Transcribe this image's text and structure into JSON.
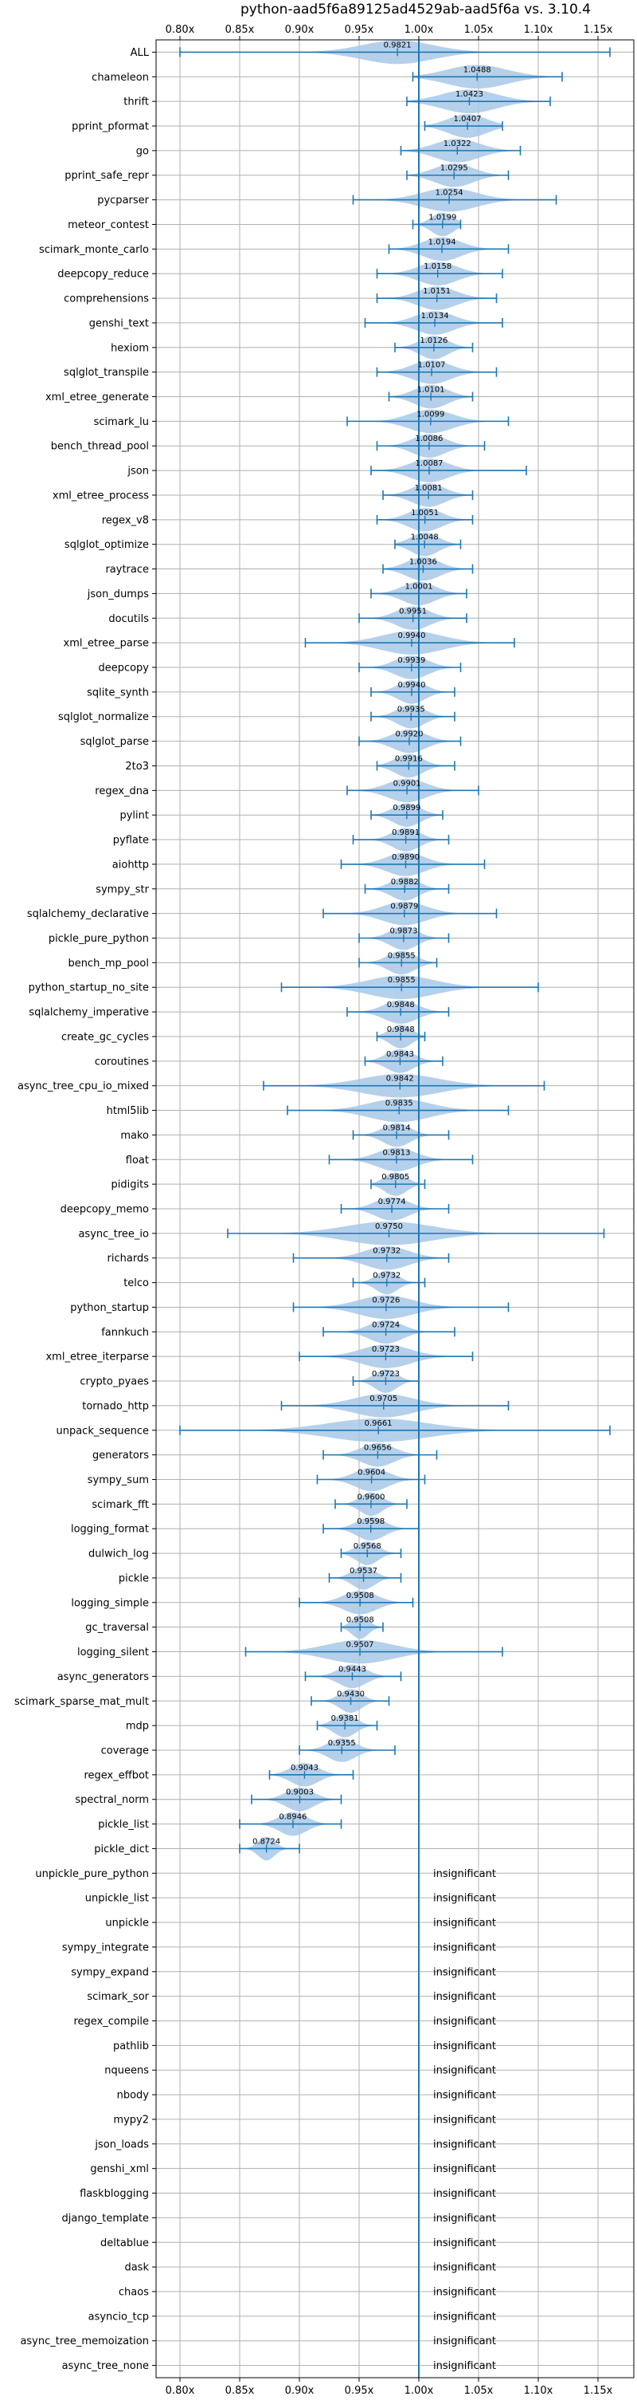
{
  "chart_data": {
    "type": "violin",
    "title": "python-aad5f6a89125ad4529ab-aad5f6a vs. 3.10.4",
    "xlabel": "",
    "ylabel": "",
    "xlim": [
      0.78,
      1.18
    ],
    "reference_line": 1.0,
    "xticks": [
      0.8,
      0.85,
      0.9,
      0.95,
      1.0,
      1.05,
      1.1,
      1.15
    ],
    "xtick_labels": [
      "0.80x",
      "0.85x",
      "0.90x",
      "0.95x",
      "1.00x",
      "1.05x",
      "1.10x",
      "1.15x"
    ],
    "grid": true,
    "colors": {
      "violin": "#a8c8e6",
      "whisker": "#1f77b4",
      "reference": "#1f77b4",
      "grid": "#b0b0b0"
    },
    "insignificant_label": "insignificant",
    "benchmarks": [
      {
        "name": "ALL",
        "value": 0.9821,
        "label": "0.9821",
        "min": 0.8,
        "max": 1.16,
        "spread": 0.065
      },
      {
        "name": "chameleon",
        "value": 1.0488,
        "label": "1.0488",
        "min": 0.995,
        "max": 1.12,
        "spread": 0.055
      },
      {
        "name": "thrift",
        "value": 1.0423,
        "label": "1.0423",
        "min": 0.99,
        "max": 1.11,
        "spread": 0.05
      },
      {
        "name": "pprint_pformat",
        "value": 1.0407,
        "label": "1.0407",
        "min": 1.005,
        "max": 1.07,
        "spread": 0.035
      },
      {
        "name": "go",
        "value": 1.0322,
        "label": "1.0322",
        "min": 0.985,
        "max": 1.085,
        "spread": 0.04
      },
      {
        "name": "pprint_safe_repr",
        "value": 1.0295,
        "label": "1.0295",
        "min": 0.99,
        "max": 1.075,
        "spread": 0.035
      },
      {
        "name": "pycparser",
        "value": 1.0254,
        "label": "1.0254",
        "min": 0.945,
        "max": 1.115,
        "spread": 0.05
      },
      {
        "name": "meteor_contest",
        "value": 1.0199,
        "label": "1.0199",
        "min": 0.995,
        "max": 1.035,
        "spread": 0.02
      },
      {
        "name": "scimark_monte_carlo",
        "value": 1.0194,
        "label": "1.0194",
        "min": 0.975,
        "max": 1.075,
        "spread": 0.035
      },
      {
        "name": "deepcopy_reduce",
        "value": 1.0158,
        "label": "1.0158",
        "min": 0.965,
        "max": 1.07,
        "spread": 0.035
      },
      {
        "name": "comprehensions",
        "value": 1.0151,
        "label": "1.0151",
        "min": 0.965,
        "max": 1.065,
        "spread": 0.035
      },
      {
        "name": "genshi_text",
        "value": 1.0134,
        "label": "1.0134",
        "min": 0.955,
        "max": 1.07,
        "spread": 0.035
      },
      {
        "name": "hexiom",
        "value": 1.0126,
        "label": "1.0126",
        "min": 0.98,
        "max": 1.045,
        "spread": 0.025
      },
      {
        "name": "sqlglot_transpile",
        "value": 1.0107,
        "label": "1.0107",
        "min": 0.965,
        "max": 1.065,
        "spread": 0.035
      },
      {
        "name": "xml_etree_generate",
        "value": 1.0101,
        "label": "1.0101",
        "min": 0.975,
        "max": 1.045,
        "spread": 0.03
      },
      {
        "name": "scimark_lu",
        "value": 1.0099,
        "label": "1.0099",
        "min": 0.94,
        "max": 1.075,
        "spread": 0.04
      },
      {
        "name": "bench_thread_pool",
        "value": 1.0086,
        "label": "1.0086",
        "min": 0.965,
        "max": 1.055,
        "spread": 0.03
      },
      {
        "name": "json",
        "value": 1.0087,
        "label": "1.0087",
        "min": 0.96,
        "max": 1.09,
        "spread": 0.035
      },
      {
        "name": "xml_etree_process",
        "value": 1.0081,
        "label": "1.0081",
        "min": 0.97,
        "max": 1.045,
        "spread": 0.03
      },
      {
        "name": "regex_v8",
        "value": 1.0051,
        "label": "1.0051",
        "min": 0.965,
        "max": 1.045,
        "spread": 0.03
      },
      {
        "name": "sqlglot_optimize",
        "value": 1.0048,
        "label": "1.0048",
        "min": 0.98,
        "max": 1.035,
        "spread": 0.025
      },
      {
        "name": "raytrace",
        "value": 1.0036,
        "label": "1.0036",
        "min": 0.97,
        "max": 1.045,
        "spread": 0.03
      },
      {
        "name": "json_dumps",
        "value": 1.0001,
        "label": "1.0001",
        "min": 0.96,
        "max": 1.04,
        "spread": 0.03
      },
      {
        "name": "docutils",
        "value": 0.9951,
        "label": "0.9951",
        "min": 0.95,
        "max": 1.04,
        "spread": 0.03
      },
      {
        "name": "xml_etree_parse",
        "value": 0.994,
        "label": "0.9940",
        "min": 0.905,
        "max": 1.08,
        "spread": 0.055
      },
      {
        "name": "deepcopy",
        "value": 0.9939,
        "label": "0.9939",
        "min": 0.95,
        "max": 1.035,
        "spread": 0.03
      },
      {
        "name": "sqlite_synth",
        "value": 0.994,
        "label": "0.9940",
        "min": 0.96,
        "max": 1.03,
        "spread": 0.025
      },
      {
        "name": "sqlglot_normalize",
        "value": 0.9935,
        "label": "0.9935",
        "min": 0.96,
        "max": 1.03,
        "spread": 0.025
      },
      {
        "name": "sqlglot_parse",
        "value": 0.992,
        "label": "0.9920",
        "min": 0.95,
        "max": 1.035,
        "spread": 0.03
      },
      {
        "name": "2to3",
        "value": 0.9916,
        "label": "0.9916",
        "min": 0.965,
        "max": 1.03,
        "spread": 0.025
      },
      {
        "name": "regex_dna",
        "value": 0.9901,
        "label": "0.9901",
        "min": 0.94,
        "max": 1.05,
        "spread": 0.035
      },
      {
        "name": "pylint",
        "value": 0.9899,
        "label": "0.9899",
        "min": 0.96,
        "max": 1.02,
        "spread": 0.025
      },
      {
        "name": "pyflate",
        "value": 0.9891,
        "label": "0.9891",
        "min": 0.945,
        "max": 1.025,
        "spread": 0.025
      },
      {
        "name": "aiohttp",
        "value": 0.989,
        "label": "0.9890",
        "min": 0.935,
        "max": 1.055,
        "spread": 0.035
      },
      {
        "name": "sympy_str",
        "value": 0.9882,
        "label": "0.9882",
        "min": 0.955,
        "max": 1.025,
        "spread": 0.025
      },
      {
        "name": "sqlalchemy_declarative",
        "value": 0.9879,
        "label": "0.9879",
        "min": 0.92,
        "max": 1.065,
        "spread": 0.04
      },
      {
        "name": "pickle_pure_python",
        "value": 0.9873,
        "label": "0.9873",
        "min": 0.95,
        "max": 1.025,
        "spread": 0.025
      },
      {
        "name": "bench_mp_pool",
        "value": 0.9855,
        "label": "0.9855",
        "min": 0.95,
        "max": 1.015,
        "spread": 0.025
      },
      {
        "name": "python_startup_no_site",
        "value": 0.9855,
        "label": "0.9855",
        "min": 0.885,
        "max": 1.1,
        "spread": 0.06
      },
      {
        "name": "sqlalchemy_imperative",
        "value": 0.9848,
        "label": "0.9848",
        "min": 0.94,
        "max": 1.025,
        "spread": 0.03
      },
      {
        "name": "create_gc_cycles",
        "value": 0.9848,
        "label": "0.9848",
        "min": 0.965,
        "max": 1.005,
        "spread": 0.02
      },
      {
        "name": "coroutines",
        "value": 0.9843,
        "label": "0.9843",
        "min": 0.955,
        "max": 1.02,
        "spread": 0.025
      },
      {
        "name": "async_tree_cpu_io_mixed",
        "value": 0.9842,
        "label": "0.9842",
        "min": 0.87,
        "max": 1.105,
        "spread": 0.07
      },
      {
        "name": "html5lib",
        "value": 0.9835,
        "label": "0.9835",
        "min": 0.89,
        "max": 1.075,
        "spread": 0.055
      },
      {
        "name": "mako",
        "value": 0.9814,
        "label": "0.9814",
        "min": 0.945,
        "max": 1.025,
        "spread": 0.025
      },
      {
        "name": "float",
        "value": 0.9813,
        "label": "0.9813",
        "min": 0.925,
        "max": 1.045,
        "spread": 0.035
      },
      {
        "name": "pidigits",
        "value": 0.9805,
        "label": "0.9805",
        "min": 0.96,
        "max": 1.005,
        "spread": 0.02
      },
      {
        "name": "deepcopy_memo",
        "value": 0.9774,
        "label": "0.9774",
        "min": 0.935,
        "max": 1.025,
        "spread": 0.03
      },
      {
        "name": "async_tree_io",
        "value": 0.975,
        "label": "0.9750",
        "min": 0.84,
        "max": 1.155,
        "spread": 0.08
      },
      {
        "name": "richards",
        "value": 0.9732,
        "label": "0.9732",
        "min": 0.895,
        "max": 1.025,
        "spread": 0.04
      },
      {
        "name": "telco",
        "value": 0.9732,
        "label": "0.9732",
        "min": 0.945,
        "max": 1.005,
        "spread": 0.02
      },
      {
        "name": "python_startup",
        "value": 0.9726,
        "label": "0.9726",
        "min": 0.895,
        "max": 1.075,
        "spread": 0.05
      },
      {
        "name": "fannkuch",
        "value": 0.9724,
        "label": "0.9724",
        "min": 0.92,
        "max": 1.03,
        "spread": 0.03
      },
      {
        "name": "xml_etree_iterparse",
        "value": 0.9723,
        "label": "0.9723",
        "min": 0.9,
        "max": 1.045,
        "spread": 0.045
      },
      {
        "name": "crypto_pyaes",
        "value": 0.9723,
        "label": "0.9723",
        "min": 0.945,
        "max": 1.0,
        "spread": 0.02
      },
      {
        "name": "tornado_http",
        "value": 0.9705,
        "label": "0.9705",
        "min": 0.885,
        "max": 1.075,
        "spread": 0.055
      },
      {
        "name": "unpack_sequence",
        "value": 0.9661,
        "label": "0.9661",
        "min": 0.8,
        "max": 1.16,
        "spread": 0.09
      },
      {
        "name": "generators",
        "value": 0.9656,
        "label": "0.9656",
        "min": 0.92,
        "max": 1.015,
        "spread": 0.03
      },
      {
        "name": "sympy_sum",
        "value": 0.9604,
        "label": "0.9604",
        "min": 0.915,
        "max": 1.005,
        "spread": 0.03
      },
      {
        "name": "scimark_fft",
        "value": 0.96,
        "label": "0.9600",
        "min": 0.93,
        "max": 0.99,
        "spread": 0.02
      },
      {
        "name": "logging_format",
        "value": 0.9598,
        "label": "0.9598",
        "min": 0.92,
        "max": 1.0,
        "spread": 0.025
      },
      {
        "name": "dulwich_log",
        "value": 0.9568,
        "label": "0.9568",
        "min": 0.935,
        "max": 0.985,
        "spread": 0.02
      },
      {
        "name": "pickle",
        "value": 0.9537,
        "label": "0.9537",
        "min": 0.925,
        "max": 0.985,
        "spread": 0.02
      },
      {
        "name": "logging_simple",
        "value": 0.9508,
        "label": "0.9508",
        "min": 0.9,
        "max": 0.995,
        "spread": 0.03
      },
      {
        "name": "gc_traversal",
        "value": 0.9508,
        "label": "0.9508",
        "min": 0.935,
        "max": 0.97,
        "spread": 0.015
      },
      {
        "name": "logging_silent",
        "value": 0.9507,
        "label": "0.9507",
        "min": 0.855,
        "max": 1.07,
        "spread": 0.06
      },
      {
        "name": "async_generators",
        "value": 0.9443,
        "label": "0.9443",
        "min": 0.905,
        "max": 0.985,
        "spread": 0.025
      },
      {
        "name": "scimark_sparse_mat_mult",
        "value": 0.943,
        "label": "0.9430",
        "min": 0.91,
        "max": 0.975,
        "spread": 0.02
      },
      {
        "name": "mdp",
        "value": 0.9381,
        "label": "0.9381",
        "min": 0.915,
        "max": 0.965,
        "spread": 0.02
      },
      {
        "name": "coverage",
        "value": 0.9355,
        "label": "0.9355",
        "min": 0.9,
        "max": 0.98,
        "spread": 0.025
      },
      {
        "name": "regex_effbot",
        "value": 0.9043,
        "label": "0.9043",
        "min": 0.875,
        "max": 0.945,
        "spread": 0.025
      },
      {
        "name": "spectral_norm",
        "value": 0.9003,
        "label": "0.9003",
        "min": 0.86,
        "max": 0.935,
        "spread": 0.025
      },
      {
        "name": "pickle_list",
        "value": 0.8946,
        "label": "0.8946",
        "min": 0.85,
        "max": 0.935,
        "spread": 0.025
      },
      {
        "name": "pickle_dict",
        "value": 0.8724,
        "label": "0.8724",
        "min": 0.85,
        "max": 0.9,
        "spread": 0.015
      },
      {
        "name": "unpickle_pure_python",
        "insignificant": true
      },
      {
        "name": "unpickle_list",
        "insignificant": true
      },
      {
        "name": "unpickle",
        "insignificant": true
      },
      {
        "name": "sympy_integrate",
        "insignificant": true
      },
      {
        "name": "sympy_expand",
        "insignificant": true
      },
      {
        "name": "scimark_sor",
        "insignificant": true
      },
      {
        "name": "regex_compile",
        "insignificant": true
      },
      {
        "name": "pathlib",
        "insignificant": true
      },
      {
        "name": "nqueens",
        "insignificant": true
      },
      {
        "name": "nbody",
        "insignificant": true
      },
      {
        "name": "mypy2",
        "insignificant": true
      },
      {
        "name": "json_loads",
        "insignificant": true
      },
      {
        "name": "genshi_xml",
        "insignificant": true
      },
      {
        "name": "flaskblogging",
        "insignificant": true
      },
      {
        "name": "django_template",
        "insignificant": true
      },
      {
        "name": "deltablue",
        "insignificant": true
      },
      {
        "name": "dask",
        "insignificant": true
      },
      {
        "name": "chaos",
        "insignificant": true
      },
      {
        "name": "asyncio_tcp",
        "insignificant": true
      },
      {
        "name": "async_tree_memoization",
        "insignificant": true
      },
      {
        "name": "async_tree_none",
        "insignificant": true
      }
    ]
  }
}
